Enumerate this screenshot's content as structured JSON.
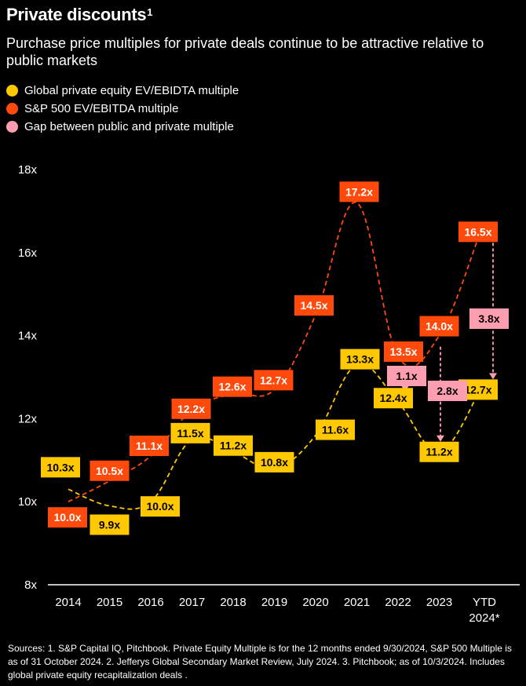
{
  "title": "Private discounts",
  "title_sup": "1",
  "subtitle": "Purchase price multiples for private deals continue to be attractive relative to public markets",
  "legend": [
    {
      "label": "Global private equity EV/EBIDTA multiple",
      "color": "#FFC800"
    },
    {
      "label": "S&P 500 EV/EBITDA multiple",
      "color": "#FF4A0C"
    },
    {
      "label": "Gap between public and private multiple",
      "color": "#FF9EB0"
    }
  ],
  "footnote": "Sources: 1. S&P Capital IQ, Pitchbook. Private Equity Multiple is for the 12 months ended 9/30/2024, S&P 500 Multiple is as of 31 October 2024. 2. Jefferys Global Secondary Market Review, July 2024. 3. Pitchbook; as of 10/3/2024. Includes global private equity recapitalization deals .",
  "chart_data": {
    "type": "line",
    "categories": [
      "2014",
      "2015",
      "2016",
      "2017",
      "2018",
      "2019",
      "2020",
      "2021",
      "2022",
      "2023",
      "YTD 2024*"
    ],
    "y_ticks": [
      "8x",
      "10x",
      "12x",
      "14x",
      "16x",
      "18x"
    ],
    "ylim": [
      8,
      18
    ],
    "grid": false,
    "series": [
      {
        "name": "Global private equity EV/EBIDTA multiple",
        "color": "#FFC800",
        "values": [
          10.3,
          9.9,
          10.0,
          11.5,
          11.2,
          10.8,
          11.6,
          13.3,
          12.4,
          11.2,
          12.7
        ],
        "labels": [
          "10.3x",
          "9.9x",
          "10.0x",
          "11.5x",
          "11.2x",
          "10.8x",
          "11.6x",
          "13.3x",
          "12.4x",
          "11.2x",
          "12.7x"
        ]
      },
      {
        "name": "S&P 500 EV/EBITDA multiple",
        "color": "#FF4A0C",
        "values": [
          10.0,
          10.5,
          11.1,
          12.2,
          12.6,
          12.7,
          14.5,
          17.2,
          13.5,
          14.0,
          16.5
        ],
        "labels": [
          "10.0x",
          "10.5x",
          "11.1x",
          "12.2x",
          "12.6x",
          "12.7x",
          "14.5x",
          "17.2x",
          "13.5x",
          "14.0x",
          "16.5x"
        ]
      }
    ],
    "gaps": [
      {
        "category": "2022",
        "value": 1.1,
        "label": "1.1x",
        "color": "#FF9EB0"
      },
      {
        "category": "2023",
        "value": 2.8,
        "label": "2.8x",
        "color": "#FF9EB0"
      },
      {
        "category": "YTD 2024*",
        "value": 3.8,
        "label": "3.8x",
        "color": "#FF9EB0"
      }
    ]
  }
}
